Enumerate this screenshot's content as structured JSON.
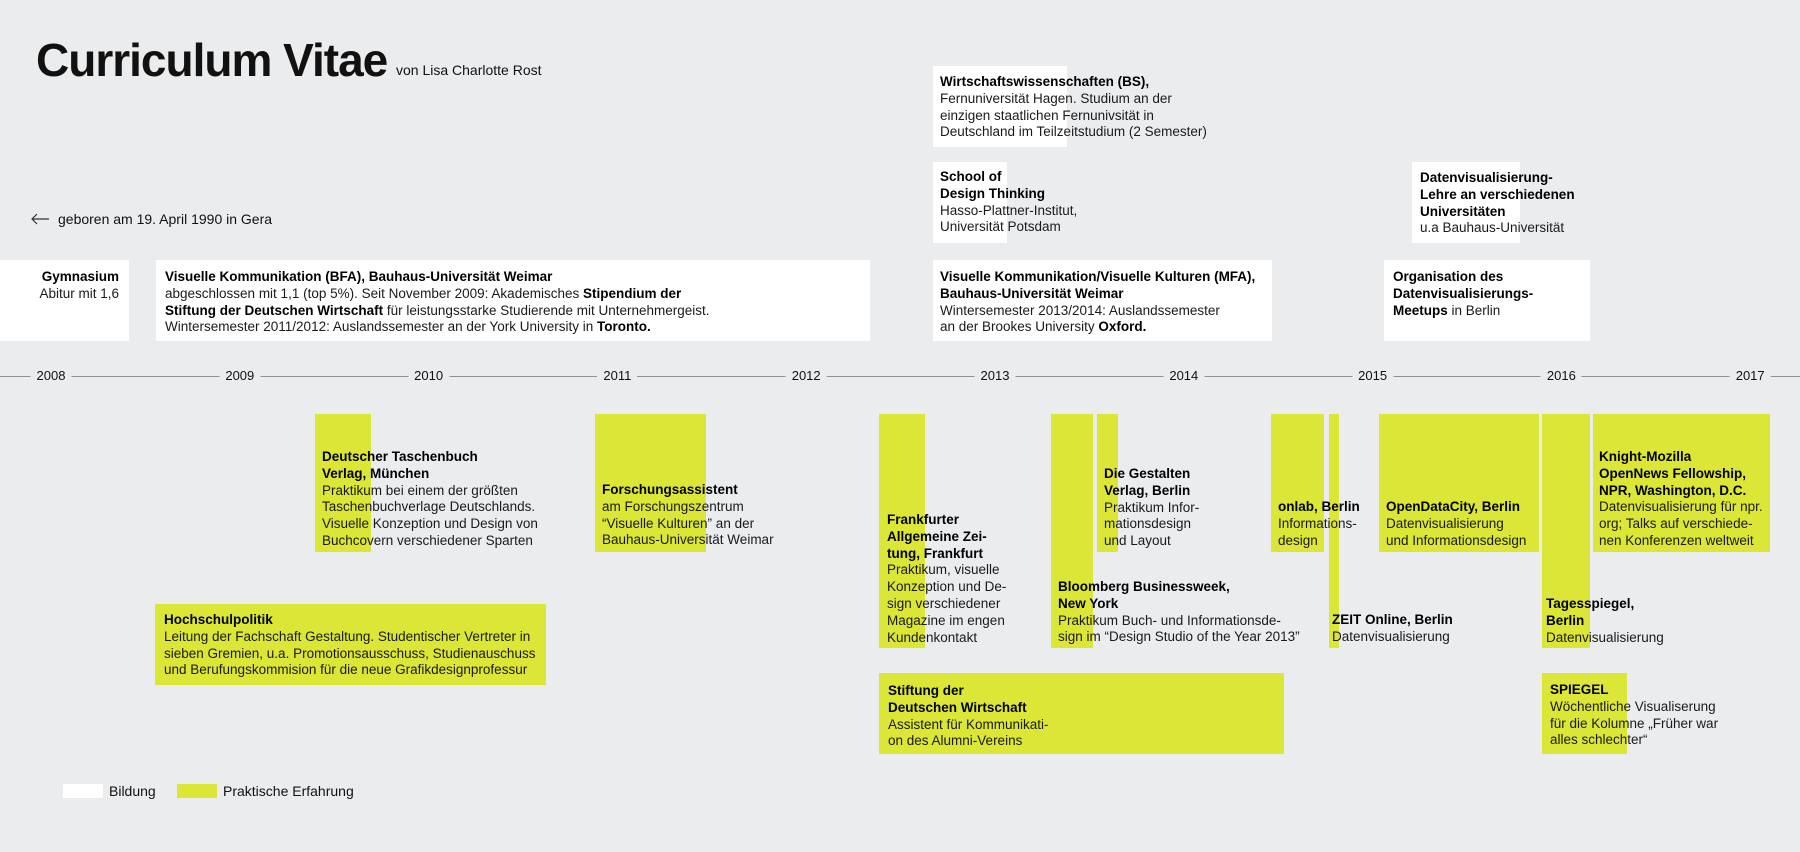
{
  "header": {
    "title": "Curriculum Vitae",
    "subtitle": "von Lisa Charlotte Rost",
    "born": "geboren am 19. April 1990 in Gera",
    "born_icon": "arrow-left-icon"
  },
  "colors": {
    "background": "#ebecee",
    "bildung": "#ffffff",
    "praxis": "#dbe636",
    "axis": "#8f9295"
  },
  "timeline": {
    "years": [
      "2008",
      "2009",
      "2010",
      "2011",
      "2012",
      "2013",
      "2014",
      "2015",
      "2016",
      "2017"
    ]
  },
  "bildung": {
    "gymnasium": {
      "title": "Gymnasium",
      "line1": "Abitur mit 1,6"
    },
    "bfa": {
      "title": "Visuelle Kommunikation (BFA), Bauhaus-Universität Weimar",
      "l1": "abgeschlossen mit 1,1 (top 5%). Seit November 2009: Akademisches ",
      "l1b": "Stipendium der",
      "l2b": "Stiftung der Deutschen Wirtschaft",
      "l2": " für leistungsstarke Studierende mit Unternehmergeist.",
      "l3": "Wintersemester 2011/2012: Auslandssemester an der York University in ",
      "l3b": "Toronto."
    },
    "wiwi": {
      "title": "Wirtschaftswissenschaften (BS),",
      "l1": "Fernuniversität Hagen. Studium an der",
      "l2": "einzigen staatlichen Fernunivsität in",
      "l3": "Deutschland im Teilzeitstudium (2 Semester)"
    },
    "dt": {
      "t1": "School of",
      "t2": "Design Thinking",
      "l1": "Hasso-Plattner-Institut,",
      "l2": "Universität Potsdam"
    },
    "mfa": {
      "t1": "Visuelle Kommunikation/Visuelle Kulturen (MFA),",
      "t2": "Bauhaus-Universität Weimar",
      "l1": "Wintersemester 2013/2014: Auslandssemester",
      "l2": "an der Brookes University ",
      "l2b": "Oxford."
    },
    "lehre": {
      "t1": "Datenvisualisierung-",
      "t2": "Lehre an verschiedenen",
      "t3": "Universitäten",
      "l1": "u.a Bauhaus-Universität"
    },
    "meetups": {
      "t1": "Organisation des",
      "t2": "Datenvisualisierungs-",
      "t3": "Meetups",
      "l3": " in Berlin"
    }
  },
  "praxis": {
    "dtv": {
      "t1": "Deutscher Taschenbuch",
      "t2": "Verlag, München",
      "l1": "Praktikum bei einem der größten",
      "l2": "Taschenbuchverlage Deutschlands.",
      "l3": "Visuelle Konzeption und Design von",
      "l4": "Buchcovern verschiedener Sparten"
    },
    "forschung": {
      "t1": "Forschungsassistent",
      "l1": "am Forschungszentrum",
      "l2": "“Visuelle Kulturen” an der",
      "l3": "Bauhaus-Universität Weimar"
    },
    "hochschul": {
      "t1": "Hochschulpolitik",
      "l1": "Leitung der Fachschaft Gestaltung. Studentischer Vertreter in",
      "l2": "sieben Gremien, u.a. Promotionsausschuss, Studienauschuss",
      "l3": "und Berufungskommision für die neue Grafikdesignprofessur"
    },
    "faz": {
      "t1": "Frankfurter",
      "t2": "Allgemeine Zei-",
      "t3": "tung, Frankfurt",
      "l1": "Praktikum, visuelle",
      "l2": "Konzeption und De-",
      "l3": "sign verschiedener",
      "l4": "Magazine im engen",
      "l5": "Kundenkontakt"
    },
    "gestalten": {
      "t1": "Die Gestalten",
      "t2": "Verlag, Berlin",
      "l1": "Praktikum Infor-",
      "l2": "mationsdesign",
      "l3": "und Layout"
    },
    "bloomberg": {
      "t1": "Bloomberg Businessweek,",
      "t2": "New York",
      "l1": "Praktikum Buch- und Informationsde-",
      "l2": "sign im “Design Studio of the Year 2013”"
    },
    "sdw": {
      "t1": "Stiftung der",
      "t2": "Deutschen Wirtschaft",
      "l1": "Assistent für Kommunikati-",
      "l2": "on des Alumni-Vereins"
    },
    "onlab": {
      "t1": "onlab, Berlin",
      "l1": "Informations-",
      "l2": "design"
    },
    "zeit": {
      "t1": "ZEIT Online, Berlin",
      "l1": "Datenvisualisierung"
    },
    "odc": {
      "t1": "OpenDataCity, Berlin",
      "l1": "Datenvisualisierung",
      "l2": "und Informationsdesign"
    },
    "tsp": {
      "t1": "Tagesspiegel,",
      "t2": "Berlin",
      "l1": "Datenvisualisierung"
    },
    "knight": {
      "t1": "Knight-Mozilla",
      "t2": "OpenNews Fellowship,",
      "t3": "NPR, Washington, D.C.",
      "l1": "Datenvisualisierung für npr.",
      "l2": "org; Talks auf verschiede-",
      "l3": "nen Konferenzen weltweit"
    },
    "spiegel": {
      "t1": "SPIEGEL",
      "l1": "Wöchentliche Visualiserung",
      "l2": "für die Kolumne „Früher war",
      "l3": "alles schlechter“"
    }
  },
  "legend": {
    "bildung": "Bildung",
    "praxis": "Praktische Erfahrung"
  }
}
